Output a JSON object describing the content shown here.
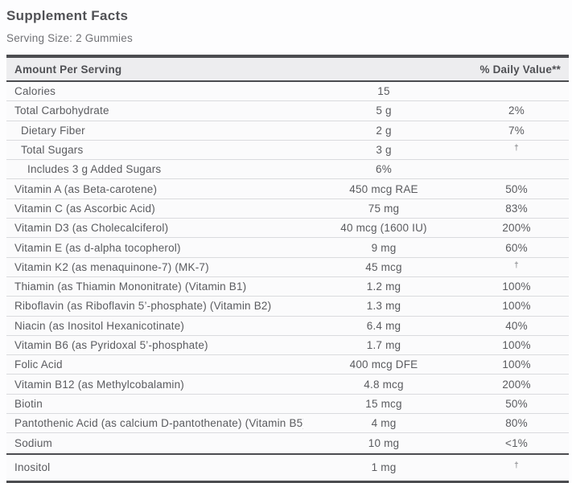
{
  "label": {
    "title": "Supplement Facts",
    "serving_size": "Serving Size: 2 Gummies",
    "header": {
      "amount_col": "Amount Per Serving",
      "dv_col": "% Daily Value**"
    },
    "rows": [
      {
        "name": "Calories",
        "amount": "15",
        "dv": ""
      },
      {
        "name": "Total Carbohydrate",
        "amount": "5 g",
        "dv": "2%"
      },
      {
        "name": "Dietary Fiber",
        "amount": "2 g",
        "dv": "7%"
      },
      {
        "name": "Total Sugars",
        "amount": "3 g",
        "dv": "†"
      },
      {
        "name": "Includes 3 g Added Sugars",
        "amount": "6%",
        "dv": ""
      },
      {
        "name": "Vitamin A (as Beta-carotene)",
        "amount": "450 mcg RAE",
        "dv": "50%"
      },
      {
        "name": "Vitamin C (as Ascorbic Acid)",
        "amount": "75 mg",
        "dv": "83%"
      },
      {
        "name": "Vitamin D3 (as Cholecalciferol)",
        "amount": "40 mcg (1600 IU)",
        "dv": "200%"
      },
      {
        "name": "Vitamin E (as d-alpha tocopherol)",
        "amount": "9 mg",
        "dv": "60%"
      },
      {
        "name": "Vitamin K2 (as menaquinone-7) (MK-7)",
        "amount": "45 mcg",
        "dv": "†"
      },
      {
        "name": "Thiamin (as Thiamin Mononitrate) (Vitamin B1)",
        "amount": "1.2 mg",
        "dv": "100%"
      },
      {
        "name": "Riboflavin (as Riboflavin 5’-phosphate) (Vitamin B2)",
        "amount": "1.3 mg",
        "dv": "100%"
      },
      {
        "name": "Niacin (as Inositol Hexanicotinate)",
        "amount": "6.4 mg",
        "dv": "40%"
      },
      {
        "name": "Vitamin B6 (as Pyridoxal 5’-phosphate)",
        "amount": "1.7 mg",
        "dv": "100%"
      },
      {
        "name": "Folic Acid",
        "amount": "400 mcg DFE",
        "dv": "100%"
      },
      {
        "name": "Vitamin B12 (as Methylcobalamin)",
        "amount": "4.8 mcg",
        "dv": "200%"
      },
      {
        "name": "Biotin",
        "amount": "15 mcg",
        "dv": "50%"
      },
      {
        "name": "Pantothenic Acid (as calcium D-pantothenate) (Vitamin B5)",
        "amount": "4 mg",
        "dv": "80%"
      },
      {
        "name": "Sodium",
        "amount": "10 mg",
        "dv": "<1%"
      },
      {
        "name": "Inositol",
        "amount": "1 mg",
        "dv": "†"
      }
    ],
    "colors": {
      "bar": "#4b4c50",
      "header_bg": "#ededef",
      "row_separator": "#dadbde",
      "text": "#5a5b5f"
    }
  }
}
